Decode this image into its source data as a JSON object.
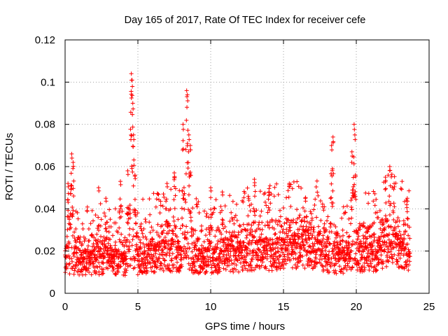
{
  "chart_data": {
    "type": "scatter",
    "title": "Day 165 of 2017, Rate Of TEC Index for receiver cefe",
    "xlabel": "GPS time / hours",
    "ylabel": "ROTI / TECUs",
    "xlim": [
      0,
      25
    ],
    "ylim": [
      0,
      0.12
    ],
    "x_ticks": [
      0,
      5,
      10,
      15,
      20,
      25
    ],
    "x_tick_labels": [
      "0",
      "5",
      "10",
      "15",
      "20",
      "25"
    ],
    "y_ticks": [
      0,
      0.02,
      0.04,
      0.06,
      0.08,
      0.1,
      0.12
    ],
    "y_tick_labels": [
      "0",
      "0.02",
      "0.04",
      "0.06",
      "0.08",
      "0.1",
      "0.12"
    ],
    "grid": true,
    "marker": "+",
    "color": "#ff0000",
    "data_extent_x": [
      0,
      23.7
    ],
    "series": [
      {
        "name": "ROTI",
        "baseline": [
          [
            0.0,
            0.013
          ],
          [
            1.0,
            0.015
          ],
          [
            2.0,
            0.016
          ],
          [
            3.0,
            0.016
          ],
          [
            4.0,
            0.015
          ],
          [
            5.0,
            0.016
          ],
          [
            6.0,
            0.018
          ],
          [
            7.0,
            0.019
          ],
          [
            8.0,
            0.018
          ],
          [
            9.0,
            0.017
          ],
          [
            10.0,
            0.017
          ],
          [
            11.0,
            0.017
          ],
          [
            12.0,
            0.018
          ],
          [
            13.0,
            0.019
          ],
          [
            14.0,
            0.019
          ],
          [
            15.0,
            0.02
          ],
          [
            16.0,
            0.021
          ],
          [
            17.0,
            0.021
          ],
          [
            18.0,
            0.018
          ],
          [
            19.0,
            0.016
          ],
          [
            20.0,
            0.019
          ],
          [
            21.0,
            0.018
          ],
          [
            22.0,
            0.021
          ],
          [
            23.0,
            0.021
          ],
          [
            23.7,
            0.018
          ]
        ],
        "spikes": [
          {
            "x": 0.2,
            "y": 0.052
          },
          {
            "x": 0.4,
            "y": 0.051
          },
          {
            "x": 0.45,
            "y": 0.066
          },
          {
            "x": 0.55,
            "y": 0.062
          },
          {
            "x": 2.3,
            "y": 0.05
          },
          {
            "x": 2.8,
            "y": 0.045
          },
          {
            "x": 3.8,
            "y": 0.053
          },
          {
            "x": 4.3,
            "y": 0.058
          },
          {
            "x": 4.55,
            "y": 0.104
          },
          {
            "x": 4.6,
            "y": 0.101
          },
          {
            "x": 4.65,
            "y": 0.09
          },
          {
            "x": 4.7,
            "y": 0.075
          },
          {
            "x": 4.8,
            "y": 0.056
          },
          {
            "x": 7.0,
            "y": 0.052
          },
          {
            "x": 7.5,
            "y": 0.057
          },
          {
            "x": 8.1,
            "y": 0.08
          },
          {
            "x": 8.35,
            "y": 0.096
          },
          {
            "x": 8.4,
            "y": 0.094
          },
          {
            "x": 8.5,
            "y": 0.075
          },
          {
            "x": 8.6,
            "y": 0.07
          },
          {
            "x": 10.0,
            "y": 0.05
          },
          {
            "x": 10.8,
            "y": 0.048
          },
          {
            "x": 13.0,
            "y": 0.054
          },
          {
            "x": 14.0,
            "y": 0.048
          },
          {
            "x": 15.4,
            "y": 0.052
          },
          {
            "x": 16.5,
            "y": 0.045
          },
          {
            "x": 18.3,
            "y": 0.07
          },
          {
            "x": 18.4,
            "y": 0.074
          },
          {
            "x": 19.7,
            "y": 0.067
          },
          {
            "x": 19.85,
            "y": 0.08
          },
          {
            "x": 19.9,
            "y": 0.075
          },
          {
            "x": 22.0,
            "y": 0.055
          },
          {
            "x": 22.3,
            "y": 0.06
          },
          {
            "x": 22.6,
            "y": 0.052
          },
          {
            "x": 23.5,
            "y": 0.045
          }
        ],
        "min_y": 0.004,
        "max_y": 0.104
      }
    ]
  }
}
